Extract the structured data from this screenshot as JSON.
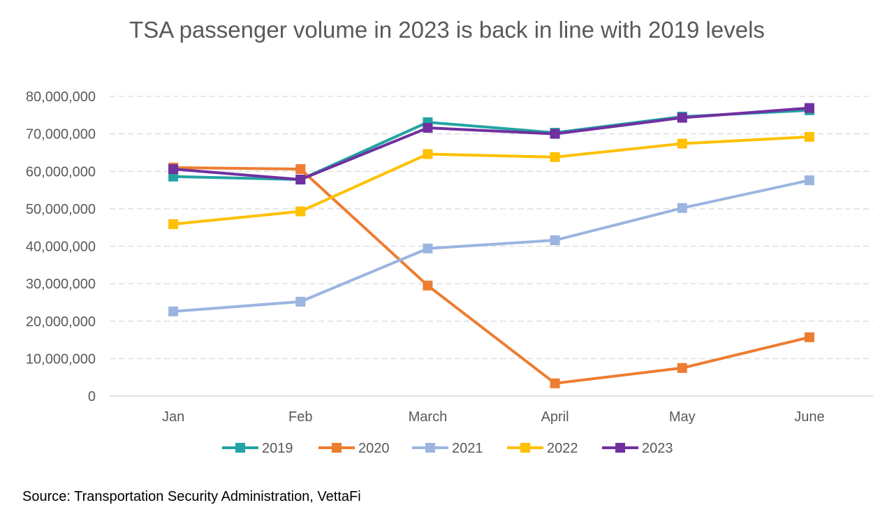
{
  "chart_data": {
    "type": "line",
    "title": "TSA passenger volume in 2023 is back in line with 2019 levels",
    "categories": [
      "Jan",
      "Feb",
      "March",
      "April",
      "May",
      "June"
    ],
    "ylim": [
      0,
      80000000
    ],
    "yticks": [
      0,
      10000000,
      20000000,
      30000000,
      40000000,
      50000000,
      60000000,
      70000000,
      80000000
    ],
    "ytick_labels": [
      "0",
      "10,000,000",
      "20,000,000",
      "30,000,000",
      "40,000,000",
      "50,000,000",
      "60,000,000",
      "70,000,000",
      "80,000,000"
    ],
    "grid": "horizontal dashed",
    "legend_position": "bottom",
    "series": [
      {
        "name": "2019",
        "color": "#23a3a3",
        "values": [
          58600000,
          57800000,
          73100000,
          70300000,
          74600000,
          76300000
        ]
      },
      {
        "name": "2020",
        "color": "#ed7d31",
        "values": [
          61000000,
          60600000,
          29500000,
          3400000,
          7500000,
          15700000
        ]
      },
      {
        "name": "2021",
        "color": "#9bb5e0",
        "values": [
          22600000,
          25200000,
          39400000,
          41600000,
          50200000,
          57600000
        ]
      },
      {
        "name": "2022",
        "color": "#ffc000",
        "values": [
          45900000,
          49300000,
          64600000,
          63800000,
          67400000,
          69200000
        ]
      },
      {
        "name": "2023",
        "color": "#7030a0",
        "values": [
          60600000,
          57800000,
          71600000,
          70000000,
          74300000,
          76900000
        ]
      }
    ]
  },
  "source": "Source: Transportation Security Administration, VettaFi"
}
